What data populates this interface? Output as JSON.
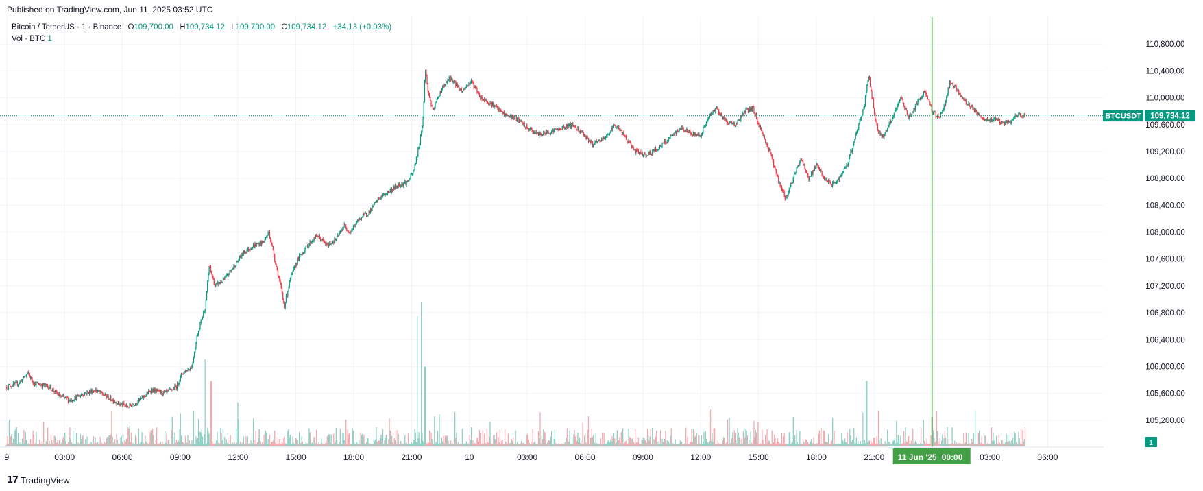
{
  "published": "Published on TradingView.com, Jun 11, 2025 03:52 UTC",
  "legend": {
    "symbol": "Bitcoin / TetherUS · 1 · Binance",
    "o_label": "O",
    "o_value": "109,700.00",
    "h_label": "H",
    "h_value": "109,734.12",
    "l_label": "L",
    "l_value": "109,700.00",
    "c_label": "C",
    "c_value": "109,734.12",
    "change": "+34.13 (+0.03%)"
  },
  "vol": {
    "label": "Vol · BTC",
    "value": "1",
    "badge": "1"
  },
  "price_tag": {
    "ticker": "BTCUSDT",
    "price": "109,734.12",
    "value": 109734.12
  },
  "crosshair_label": {
    "date": "11 Jun '25",
    "time": "00:00"
  },
  "footer": {
    "logo": "𝟭𝟳",
    "brand": "TradingView"
  },
  "colors": {
    "up": "#089981",
    "down": "#f23645",
    "volUp": "#8fcfc4",
    "volDown": "#f5a8ae",
    "crosshair": "#43a047",
    "grid": "#f0f3fa"
  },
  "chart_data": {
    "type": "candlestick",
    "title": "Bitcoin / TetherUS · 1 · Binance",
    "y_ticks": [
      105200,
      105600,
      106000,
      106400,
      106800,
      107200,
      107600,
      108000,
      108400,
      108800,
      109200,
      109600,
      110000,
      110400,
      110800
    ],
    "y_tick_labels": [
      "105,200.00",
      "105,600.00",
      "106,000.00",
      "106,400.00",
      "106,800.00",
      "107,200.00",
      "107,600.00",
      "108,000.00",
      "108,400.00",
      "108,800.00",
      "109,200.00",
      "109,600.00",
      "110,000.00",
      "110,400.00",
      "110,800.00"
    ],
    "ylim": [
      104800,
      111200
    ],
    "x_tick_labels": [
      "9",
      "03:00",
      "06:00",
      "09:00",
      "12:00",
      "15:00",
      "18:00",
      "21:00",
      "10",
      "03:00",
      "06:00",
      "09:00",
      "12:00",
      "15:00",
      "18:00",
      "21:00",
      "03:00",
      "06:00"
    ],
    "x_tick_hours": [
      0,
      3,
      6,
      9,
      12,
      15,
      18,
      21,
      24,
      27,
      30,
      33,
      36,
      39,
      42,
      45,
      51,
      54
    ],
    "xlim_hours": [
      -0.35,
      56.9
    ],
    "crosshair_hour": 48,
    "price_path": [
      [
        0,
        105700
      ],
      [
        0.6,
        105750
      ],
      [
        1.1,
        105900
      ],
      [
        1.4,
        105750
      ],
      [
        2.2,
        105700
      ],
      [
        2.8,
        105550
      ],
      [
        3.3,
        105500
      ],
      [
        4.0,
        105600
      ],
      [
        4.6,
        105650
      ],
      [
        5.2,
        105550
      ],
      [
        5.8,
        105450
      ],
      [
        6.3,
        105400
      ],
      [
        6.9,
        105500
      ],
      [
        7.5,
        105650
      ],
      [
        8.2,
        105600
      ],
      [
        8.8,
        105700
      ],
      [
        9.1,
        105900
      ],
      [
        9.6,
        106000
      ],
      [
        9.9,
        106500
      ],
      [
        10.1,
        106700
      ],
      [
        10.3,
        106900
      ],
      [
        10.5,
        107500
      ],
      [
        10.8,
        107200
      ],
      [
        11.3,
        107300
      ],
      [
        11.8,
        107500
      ],
      [
        12.3,
        107700
      ],
      [
        12.8,
        107800
      ],
      [
        13.3,
        107850
      ],
      [
        13.6,
        108000
      ],
      [
        13.9,
        107600
      ],
      [
        14.2,
        107200
      ],
      [
        14.4,
        106900
      ],
      [
        14.7,
        107300
      ],
      [
        15.1,
        107600
      ],
      [
        15.6,
        107800
      ],
      [
        16.1,
        107950
      ],
      [
        16.6,
        107800
      ],
      [
        17.1,
        107900
      ],
      [
        17.5,
        108100
      ],
      [
        17.8,
        108000
      ],
      [
        18.3,
        108200
      ],
      [
        18.8,
        108300
      ],
      [
        19.3,
        108500
      ],
      [
        19.8,
        108600
      ],
      [
        20.3,
        108700
      ],
      [
        20.8,
        108750
      ],
      [
        21.1,
        108900
      ],
      [
        21.4,
        109300
      ],
      [
        21.6,
        109700
      ],
      [
        21.7,
        110450
      ],
      [
        21.85,
        110100
      ],
      [
        22.1,
        109800
      ],
      [
        22.5,
        110100
      ],
      [
        23.0,
        110300
      ],
      [
        23.6,
        110100
      ],
      [
        24.1,
        110250
      ],
      [
        24.6,
        110000
      ],
      [
        25.2,
        109900
      ],
      [
        25.8,
        109750
      ],
      [
        26.4,
        109700
      ],
      [
        27.0,
        109550
      ],
      [
        27.6,
        109450
      ],
      [
        28.2,
        109500
      ],
      [
        28.8,
        109550
      ],
      [
        29.3,
        109600
      ],
      [
        29.8,
        109500
      ],
      [
        30.4,
        109300
      ],
      [
        31.0,
        109400
      ],
      [
        31.6,
        109600
      ],
      [
        32.1,
        109400
      ],
      [
        32.6,
        109200
      ],
      [
        33.2,
        109150
      ],
      [
        33.8,
        109250
      ],
      [
        34.4,
        109400
      ],
      [
        35.0,
        109550
      ],
      [
        35.6,
        109450
      ],
      [
        36.0,
        109450
      ],
      [
        36.4,
        109700
      ],
      [
        36.8,
        109850
      ],
      [
        37.3,
        109650
      ],
      [
        37.8,
        109600
      ],
      [
        38.3,
        109800
      ],
      [
        38.7,
        109850
      ],
      [
        39.0,
        109600
      ],
      [
        39.3,
        109400
      ],
      [
        39.7,
        109100
      ],
      [
        40.1,
        108700
      ],
      [
        40.4,
        108500
      ],
      [
        40.8,
        108800
      ],
      [
        41.2,
        109100
      ],
      [
        41.6,
        108800
      ],
      [
        42.0,
        109000
      ],
      [
        42.4,
        108800
      ],
      [
        42.8,
        108700
      ],
      [
        43.2,
        108800
      ],
      [
        43.6,
        109000
      ],
      [
        43.9,
        109300
      ],
      [
        44.2,
        109600
      ],
      [
        44.5,
        109900
      ],
      [
        44.7,
        110350
      ],
      [
        44.9,
        110000
      ],
      [
        45.1,
        109600
      ],
      [
        45.4,
        109400
      ],
      [
        45.7,
        109550
      ],
      [
        46.1,
        109800
      ],
      [
        46.4,
        110000
      ],
      [
        46.8,
        109700
      ],
      [
        47.2,
        109900
      ],
      [
        47.6,
        110100
      ],
      [
        48.0,
        109800
      ],
      [
        48.4,
        109700
      ],
      [
        48.7,
        109950
      ],
      [
        48.95,
        110250
      ],
      [
        49.3,
        110100
      ],
      [
        49.7,
        109950
      ],
      [
        50.1,
        109850
      ],
      [
        50.5,
        109700
      ],
      [
        50.9,
        109650
      ],
      [
        51.3,
        109700
      ],
      [
        51.7,
        109600
      ],
      [
        52.1,
        109650
      ],
      [
        52.5,
        109750
      ],
      [
        52.85,
        109734
      ]
    ],
    "volume_spikes": [
      [
        10.3,
        0.6
      ],
      [
        10.6,
        0.45
      ],
      [
        12.0,
        0.3
      ],
      [
        21.3,
        0.9
      ],
      [
        21.5,
        1.0
      ],
      [
        21.7,
        0.55
      ],
      [
        36.5,
        0.25
      ],
      [
        37.4,
        0.45
      ],
      [
        44.6,
        0.45
      ],
      [
        48.0,
        0.2
      ]
    ],
    "last_price": 109734.12,
    "series_colors": {
      "up": "#089981",
      "down": "#f23645"
    }
  }
}
